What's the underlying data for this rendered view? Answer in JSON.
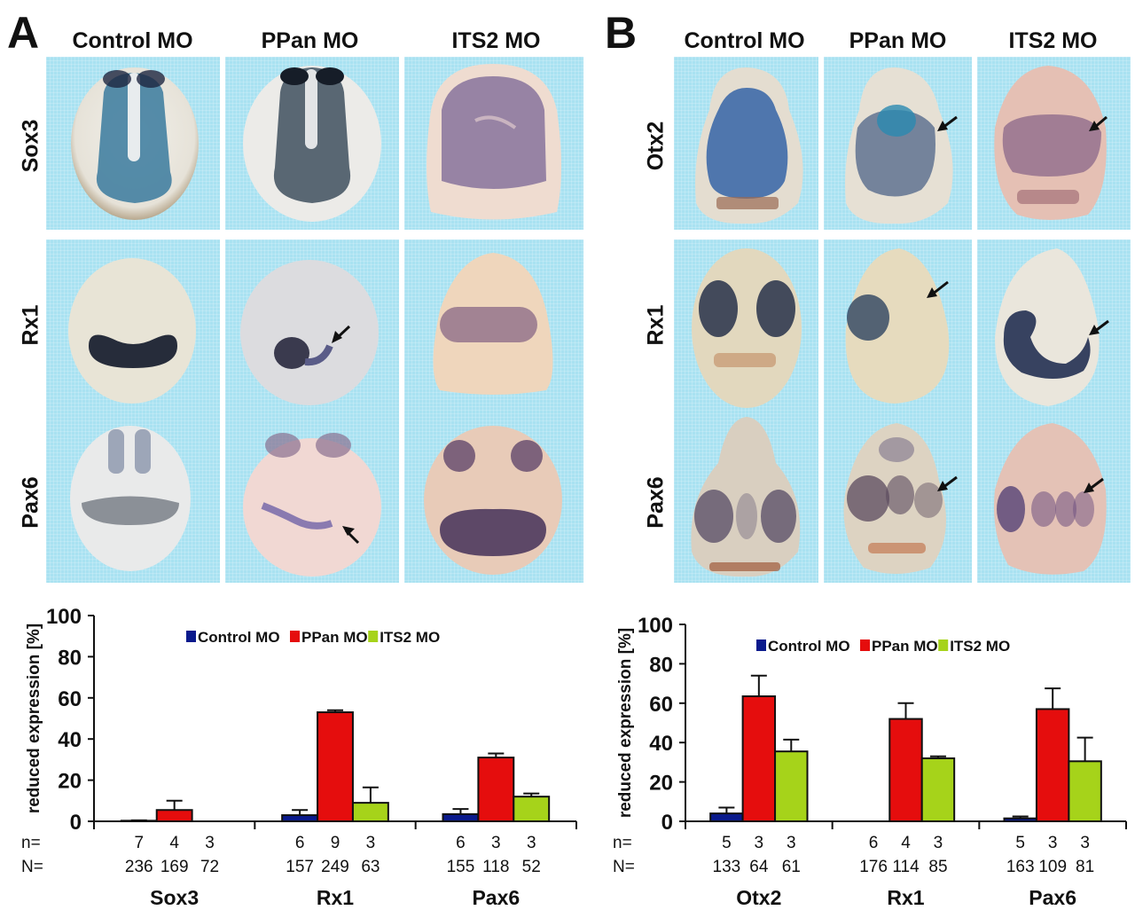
{
  "figure": {
    "panels": [
      {
        "letter": "A",
        "columns": [
          "Control MO",
          "PPan MO",
          "ITS2 MO"
        ],
        "rows": [
          "Sox3",
          "Rx1",
          "Pax6"
        ],
        "arrows": [
          {
            "row": 1,
            "col": 1,
            "label": "arrow"
          },
          {
            "row": 2,
            "col": 1,
            "label": "arrow"
          }
        ]
      },
      {
        "letter": "B",
        "columns": [
          "Control MO",
          "PPan MO",
          "ITS2 MO"
        ],
        "rows": [
          "Otx2",
          "Rx1",
          "Pax6"
        ],
        "arrows": [
          {
            "row": 0,
            "col": 1,
            "label": "arrow"
          },
          {
            "row": 0,
            "col": 2,
            "label": "arrow"
          },
          {
            "row": 1,
            "col": 1,
            "label": "arrow"
          },
          {
            "row": 1,
            "col": 2,
            "label": "arrow"
          },
          {
            "row": 2,
            "col": 1,
            "label": "arrow"
          },
          {
            "row": 2,
            "col": 2,
            "label": "arrow"
          }
        ]
      }
    ],
    "colors": {
      "control": "#0a1a8c",
      "ppan": "#e50d0d",
      "its2": "#a6d31a",
      "panel_bg": "#a9e2f1"
    }
  },
  "chart_data": [
    {
      "type": "bar",
      "panel": "A",
      "title": "",
      "xlabel": "",
      "ylabel": "reduced expression [%]",
      "ylim": [
        0,
        100
      ],
      "yticks": [
        0,
        20,
        40,
        60,
        80,
        100
      ],
      "grid": false,
      "legend": {
        "position": "top-center",
        "entries": [
          "Control MO",
          "PPan MO",
          "ITS2 MO"
        ]
      },
      "categories": [
        "Sox3",
        "Rx1",
        "Pax6"
      ],
      "series": [
        {
          "name": "Control MO",
          "values": [
            0.3,
            3,
            3.5
          ],
          "errors": [
            0.2,
            2.5,
            2.5
          ]
        },
        {
          "name": "PPan MO",
          "values": [
            5.5,
            53,
            31
          ],
          "errors": [
            4.5,
            1,
            2
          ]
        },
        {
          "name": "ITS2 MO",
          "values": [
            0,
            9,
            12
          ],
          "errors": [
            0,
            7.5,
            1.5
          ]
        }
      ],
      "n_label": "n=",
      "N_label": "N=",
      "n": [
        [
          "7",
          "4",
          "3"
        ],
        [
          "6",
          "9",
          "3"
        ],
        [
          "6",
          "3",
          "3"
        ]
      ],
      "N": [
        [
          "236",
          "169",
          "72"
        ],
        [
          "157",
          "249",
          "63"
        ],
        [
          "155",
          "118",
          "52"
        ]
      ]
    },
    {
      "type": "bar",
      "panel": "B",
      "title": "",
      "xlabel": "",
      "ylabel": "reduced expression [%]",
      "ylim": [
        0,
        100
      ],
      "yticks": [
        0,
        20,
        40,
        60,
        80,
        100
      ],
      "grid": false,
      "legend": {
        "position": "top-center",
        "entries": [
          "Control MO",
          "PPan MO",
          "ITS2 MO"
        ]
      },
      "categories": [
        "Otx2",
        "Rx1",
        "Pax6"
      ],
      "series": [
        {
          "name": "Control MO",
          "values": [
            4,
            0,
            1.5
          ],
          "errors": [
            3,
            0,
            1
          ]
        },
        {
          "name": "PPan MO",
          "values": [
            63.5,
            52,
            57
          ],
          "errors": [
            10.5,
            8,
            10.5
          ]
        },
        {
          "name": "ITS2 MO",
          "values": [
            35.5,
            32,
            30.5
          ],
          "errors": [
            6,
            1,
            12
          ]
        }
      ],
      "n_label": "n=",
      "N_label": "N=",
      "n": [
        [
          "5",
          "3",
          "3"
        ],
        [
          "6",
          "4",
          "3"
        ],
        [
          "5",
          "3",
          "3"
        ]
      ],
      "N": [
        [
          "133",
          "64",
          "61"
        ],
        [
          "176",
          "114",
          "85"
        ],
        [
          "163",
          "109",
          "81"
        ]
      ]
    }
  ]
}
